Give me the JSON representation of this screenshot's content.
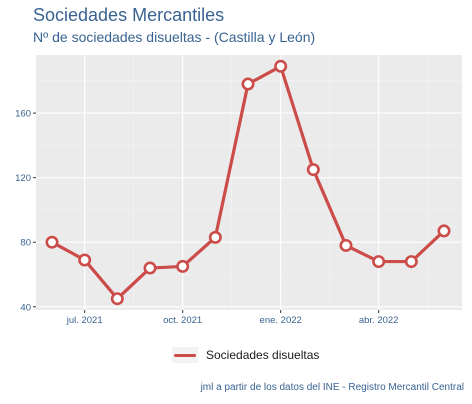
{
  "title": "Sociedades Mercantiles",
  "subtitle": "Nº de sociedades disueltas - (Castilla y León)",
  "caption": "jml a partir de los datos del INE - Registro Mercantil Central",
  "colors": {
    "series": "#cb4c49",
    "panel": "#ebebeb",
    "grid_major": "#ffffff",
    "grid_minor": "#f4f4f4",
    "title": "#3a6391"
  },
  "chart_data": {
    "type": "line",
    "x": [
      "2021-06",
      "2021-07",
      "2021-08",
      "2021-09",
      "2021-10",
      "2021-11",
      "2021-12",
      "2022-01",
      "2022-02",
      "2022-03",
      "2022-04",
      "2022-05",
      "2022-06"
    ],
    "series": [
      {
        "name": "Sociedades disueltas",
        "values": [
          80,
          69,
          45,
          64,
          65,
          83,
          178,
          189,
          125,
          78,
          68,
          68,
          87
        ]
      }
    ],
    "x_ticks": [
      "jul. 2021",
      "oct. 2021",
      "ene. 2022",
      "abr. 2022"
    ],
    "y_ticks": [
      40,
      80,
      120,
      160
    ],
    "ylim": [
      38,
      196
    ],
    "grid": true,
    "legend_position": "bottom"
  }
}
